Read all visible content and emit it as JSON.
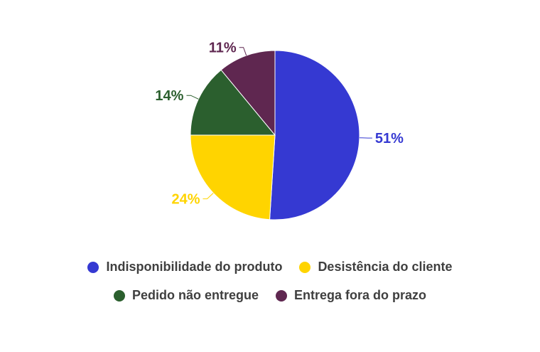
{
  "chart_data": {
    "type": "pie",
    "slices": [
      {
        "name": "Indisponibilidade do produto",
        "value": 51,
        "label": "51%",
        "color": "#3539d2"
      },
      {
        "name": "Desistência do cliente",
        "value": 24,
        "label": "24%",
        "color": "#ffd400"
      },
      {
        "name": "Pedido não entregue",
        "value": 14,
        "label": "14%",
        "color": "#2b5f2e"
      },
      {
        "name": "Entrega fora do prazo",
        "value": 11,
        "label": "11%",
        "color": "#5f2750"
      }
    ],
    "start_angle": "12 o'clock",
    "direction": "clockwise",
    "legend_position": "bottom"
  }
}
